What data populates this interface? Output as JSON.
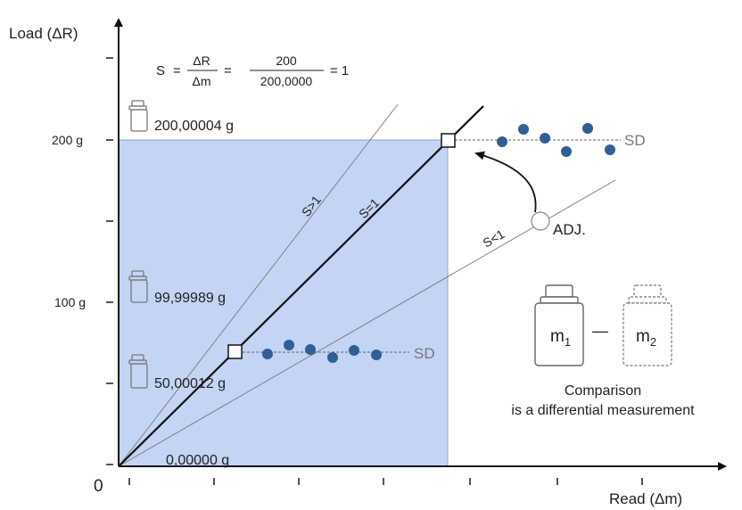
{
  "axes": {
    "y_label": "Load (ΔR)",
    "x_label": "Read  (Δm)",
    "origin": "0",
    "y_ticks": [
      "200 g",
      "100 g"
    ]
  },
  "formula": {
    "s": "S",
    "eq1": "=",
    "frac1_num": "ΔR",
    "frac1_den": "Δm",
    "eq2": "=",
    "frac2_num": "200",
    "frac2_den": "200,0000",
    "eq3": "= 1"
  },
  "weights": [
    {
      "label": "200,00004 g"
    },
    {
      "label": "99,99989 g"
    },
    {
      "label": "50,00012 g"
    },
    {
      "label": "0,00000 g"
    }
  ],
  "lines": {
    "s_gt": "S>1",
    "s_eq": "S=1",
    "s_lt": "S<1"
  },
  "sd_label_upper": "SD",
  "sd_label_lower": "SD",
  "adj_label": "ADJ.",
  "comparison": {
    "m1_base": "m",
    "m1_sub": "1",
    "dash": "—",
    "m2_base": "m",
    "m2_sub": "2",
    "caption_line1": "Comparison",
    "caption_line2": "is a differential measurement"
  },
  "colors": {
    "shade": "#c3d4f4",
    "dot": "#2f5f95",
    "axis": "#111111"
  }
}
